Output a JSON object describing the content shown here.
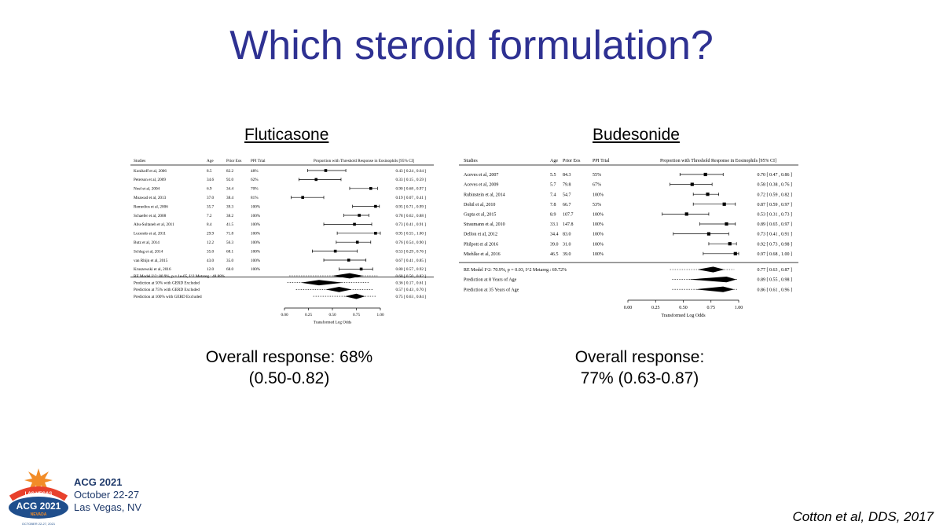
{
  "slide_title": "Which steroid formulation?",
  "citation": "Cotton et al, DDS, 2017",
  "footer": {
    "logo_top_word": "LAS VEGAS",
    "logo_main": "ACG 2021",
    "logo_sub": "NEVADA",
    "logo_dates": "OCTOBER 22-27, 2021",
    "name": "ACG 2021",
    "dates": "October 22-27",
    "place": "Las Vegas, NV"
  },
  "colors": {
    "title": "#2e3192",
    "footer_text": "#1f3a6b",
    "logo_orange": "#f28c28",
    "logo_blue": "#1f4e8c"
  },
  "panels": {
    "fluticasone": {
      "heading": "Fluticasone",
      "response_line1": "Overall response: 68%",
      "response_line2": "(0.50-0.82)"
    },
    "budesonide": {
      "heading": "Budesonide",
      "response_line1": "Overall response:",
      "response_line2": "77% (0.63-0.87)"
    }
  },
  "chart_data": [
    {
      "type": "forest",
      "col_headers": [
        "Studies",
        "Age",
        "Prior Eos",
        "PPI Trial",
        "Proportion with Threshold Response in Eosinophils [95% CI]"
      ],
      "xlabel": "Transformed Log Odds",
      "xlim": [
        0,
        1
      ],
      "xticks": [
        "0.00",
        "0.25",
        "0.50",
        "0.75",
        "1.00"
      ],
      "studies": [
        {
          "name": "Konikoff et al, 2006",
          "age": "8.5",
          "eos": "82.2",
          "ppi": "48%",
          "est": 0.43,
          "lo": 0.24,
          "hi": 0.64,
          "ci": "0.43 [ 0.24 , 0.64 ]"
        },
        {
          "name": "Peterson et al, 2009",
          "age": "34.6",
          "eos": "92.0",
          "ppi": "62%",
          "est": 0.33,
          "lo": 0.15,
          "hi": 0.59,
          "ci": "0.33 [ 0.15 , 0.59 ]"
        },
        {
          "name": "Noel et al, 2004",
          "age": "6.9",
          "eos": "34.4",
          "ppi": "70%",
          "est": 0.9,
          "lo": 0.68,
          "hi": 0.97,
          "ci": "0.90 [ 0.68 , 0.97 ]"
        },
        {
          "name": "Moawad et al, 2013",
          "age": "37.0",
          "eos": "38.4",
          "ppi": "81%",
          "est": 0.19,
          "lo": 0.07,
          "hi": 0.41,
          "ci": "0.19 [ 0.07 , 0.41 ]"
        },
        {
          "name": "Remedios et al, 2006",
          "age": "35.7",
          "eos": "39.3",
          "ppi": "100%",
          "est": 0.95,
          "lo": 0.71,
          "hi": 0.99,
          "ci": "0.95 [ 0.71 , 0.99 ]"
        },
        {
          "name": "Schaefer et al, 2008",
          "age": "7.2",
          "eos": "38.2",
          "ppi": "100%",
          "est": 0.78,
          "lo": 0.62,
          "hi": 0.88,
          "ci": "0.78 [ 0.62 , 0.88 ]"
        },
        {
          "name": "Abu-Sultaneh et al, 2011",
          "age": "8.4",
          "eos": "41.5",
          "ppi": "100%",
          "est": 0.73,
          "lo": 0.41,
          "hi": 0.91,
          "ci": "0.73 [ 0.41 , 0.91 ]"
        },
        {
          "name": "Lucendo et al, 2011",
          "age": "29.9",
          "eos": "71.8",
          "ppi": "100%",
          "est": 0.95,
          "lo": 0.55,
          "hi": 1.0,
          "ci": "0.95 [ 0.55 , 1.00 ]"
        },
        {
          "name": "Butz et al, 2014",
          "age": "12.2",
          "eos": "56.3",
          "ppi": "100%",
          "est": 0.76,
          "lo": 0.54,
          "hi": 0.9,
          "ci": "0.76 [ 0.54 , 0.90 ]"
        },
        {
          "name": "Schlag et al, 2014",
          "age": "35.0",
          "eos": "68.1",
          "ppi": "100%",
          "est": 0.53,
          "lo": 0.29,
          "hi": 0.76,
          "ci": "0.53 [ 0.29 , 0.76 ]"
        },
        {
          "name": "van Rhijn et al, 2015",
          "age": "43.0",
          "eos": "35.0",
          "ppi": "100%",
          "est": 0.67,
          "lo": 0.41,
          "hi": 0.85,
          "ci": "0.67 [ 0.41 , 0.85 ]"
        },
        {
          "name": "Kruszewski et al, 2016",
          "age": "12.0",
          "eos": "68.0",
          "ppi": "100%",
          "est": 0.8,
          "lo": 0.57,
          "hi": 0.92,
          "ci": "0.80 [ 0.57 , 0.92 ]"
        }
      ],
      "summaries": [
        {
          "name": "RE Model   I^2: 80.9%, p = 1e-05, I^2 Metareg.: 48.88%",
          "est": 0.68,
          "lo": 0.5,
          "hi": 0.82,
          "plo": 0.05,
          "phi": 0.97,
          "ci": "0.68 [ 0.50 , 0.82 ]"
        },
        {
          "name": "Prediction at 50% with GERD Excluded",
          "est": 0.36,
          "lo": 0.17,
          "hi": 0.61,
          "plo": 0.03,
          "phi": 0.88,
          "ci": "0.36 [ 0.17 , 0.61 ]"
        },
        {
          "name": "Prediction at 75% with GERD Excluded",
          "est": 0.57,
          "lo": 0.43,
          "hi": 0.7,
          "plo": 0.12,
          "phi": 0.93,
          "ci": "0.57 [ 0.43 , 0.70 ]"
        },
        {
          "name": "Prediction at 100% with GERD Excluded",
          "est": 0.75,
          "lo": 0.63,
          "hi": 0.84,
          "plo": 0.3,
          "phi": 0.96,
          "ci": "0.75 [ 0.63 , 0.84 ]"
        }
      ]
    },
    {
      "type": "forest",
      "col_headers": [
        "Studies",
        "Age",
        "Prior Eos",
        "PPI Trial",
        "Proportion with Threshold Response in Eosinophils [95% CI]"
      ],
      "xlabel": "Transformed Log Odds",
      "xlim": [
        0,
        1
      ],
      "xticks": [
        "0.00",
        "0.25",
        "0.50",
        "0.75",
        "1.00"
      ],
      "studies": [
        {
          "name": "Aceves et al, 2007",
          "age": "5.5",
          "eos": "84.3",
          "ppi": "55%",
          "est": 0.7,
          "lo": 0.47,
          "hi": 0.86,
          "ci": "0.70 [ 0.47 , 0.86 ]"
        },
        {
          "name": "Aceves et al, 2009",
          "age": "5.7",
          "eos": "79.8",
          "ppi": "67%",
          "est": 0.58,
          "lo": 0.38,
          "hi": 0.76,
          "ci": "0.58 [ 0.38 , 0.76 ]"
        },
        {
          "name": "Rubinstein et al, 2014",
          "age": "7.4",
          "eos": "54.7",
          "ppi": "100%",
          "est": 0.72,
          "lo": 0.59,
          "hi": 0.82,
          "ci": "0.72 [ 0.59 , 0.82 ]"
        },
        {
          "name": "Dohil et al, 2010",
          "age": "7.8",
          "eos": "66.7",
          "ppi": "53%",
          "est": 0.87,
          "lo": 0.59,
          "hi": 0.97,
          "ci": "0.87 [ 0.59 , 0.97 ]"
        },
        {
          "name": "Gupta et al, 2015",
          "age": "8.9",
          "eos": "107.7",
          "ppi": "100%",
          "est": 0.53,
          "lo": 0.31,
          "hi": 0.73,
          "ci": "0.53 [ 0.31 , 0.73 ]"
        },
        {
          "name": "Straumann et al, 2010",
          "age": "33.1",
          "eos": "147.8",
          "ppi": "100%",
          "est": 0.89,
          "lo": 0.65,
          "hi": 0.97,
          "ci": "0.89 [ 0.65 , 0.97 ]"
        },
        {
          "name": "Dellon et al, 2012",
          "age": "34.4",
          "eos": "83.0",
          "ppi": "100%",
          "est": 0.73,
          "lo": 0.41,
          "hi": 0.91,
          "ci": "0.73 [ 0.41 , 0.91 ]"
        },
        {
          "name": "Philpott et al 2016",
          "age": "39.0",
          "eos": "31.0",
          "ppi": "100%",
          "est": 0.92,
          "lo": 0.73,
          "hi": 0.98,
          "ci": "0.92 [ 0.73 , 0.98 ]"
        },
        {
          "name": "Miehlke et al, 2016",
          "age": "46.5",
          "eos": "39.0",
          "ppi": "100%",
          "est": 0.97,
          "lo": 0.68,
          "hi": 1.0,
          "ci": "0.97 [ 0.68 , 1.00 ]"
        }
      ],
      "summaries": [
        {
          "name": "RE Model   I^2: 70.9%, p = 0.03, I^2 Metareg.: 69.72%",
          "est": 0.77,
          "lo": 0.63,
          "hi": 0.87,
          "plo": 0.38,
          "phi": 0.96,
          "ci": "0.77 [ 0.63 , 0.87 ]"
        },
        {
          "name": "Prediction at 8 Years of Age",
          "est": 0.89,
          "lo": 0.55,
          "hi": 0.98,
          "plo": 0.4,
          "phi": 0.99,
          "ci": "0.89 [ 0.55 , 0.98 ]"
        },
        {
          "name": "Prediction at 35 Years of Age",
          "est": 0.86,
          "lo": 0.61,
          "hi": 0.96,
          "plo": 0.4,
          "phi": 0.99,
          "ci": "0.86 [ 0.61 , 0.96 ]"
        }
      ]
    }
  ]
}
